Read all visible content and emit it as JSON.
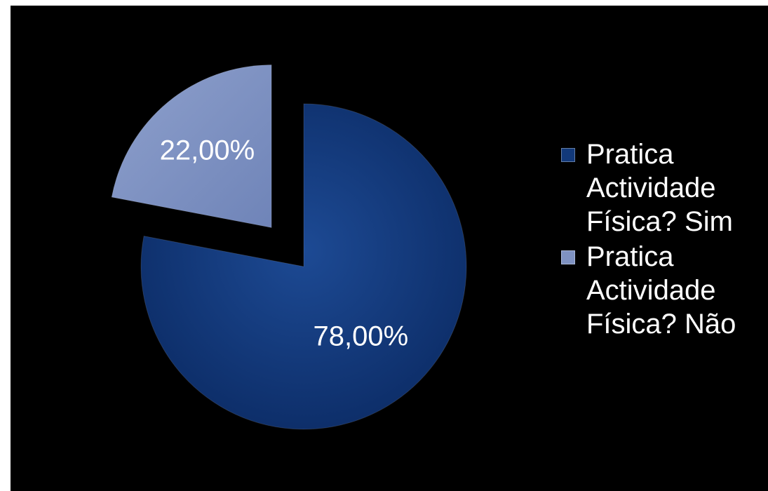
{
  "chart_data": {
    "type": "pie",
    "title": "",
    "slices": [
      {
        "label": "Pratica Actividade Física? Sim",
        "value": 78.0,
        "display": "78,00%",
        "color": "#12397a"
      },
      {
        "label": "Pratica Actividade Física? Não",
        "value": 22.0,
        "display": "22,00%",
        "color": "#7f92c2"
      }
    ],
    "legend": {
      "placement": "right"
    },
    "exploded_slice": "Pratica Actividade Física? Não"
  }
}
